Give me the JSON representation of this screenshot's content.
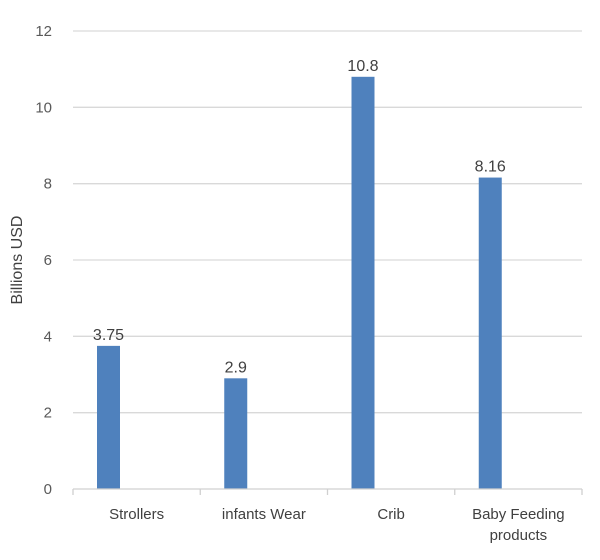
{
  "chart_data": {
    "type": "bar",
    "title": "",
    "xlabel": "",
    "ylabel": "Billions USD",
    "categories": [
      "Strollers",
      "infants Wear",
      "Crib",
      "Baby Feeding products"
    ],
    "category_lines": [
      [
        "Strollers"
      ],
      [
        "infants Wear"
      ],
      [
        "Crib"
      ],
      [
        "Baby Feeding",
        "products"
      ]
    ],
    "values": [
      3.75,
      2.9,
      10.8,
      8.16
    ],
    "data_labels": [
      "3.75",
      "2.9",
      "10.8",
      "8.16"
    ],
    "ylim": [
      0,
      12
    ],
    "yticks": [
      0,
      2,
      4,
      6,
      8,
      10,
      12
    ],
    "grid": true,
    "legend": "none",
    "colors": {
      "bar": "#4f81bd",
      "grid": "#d9d9d9",
      "axis": "#d0d0d0"
    }
  }
}
